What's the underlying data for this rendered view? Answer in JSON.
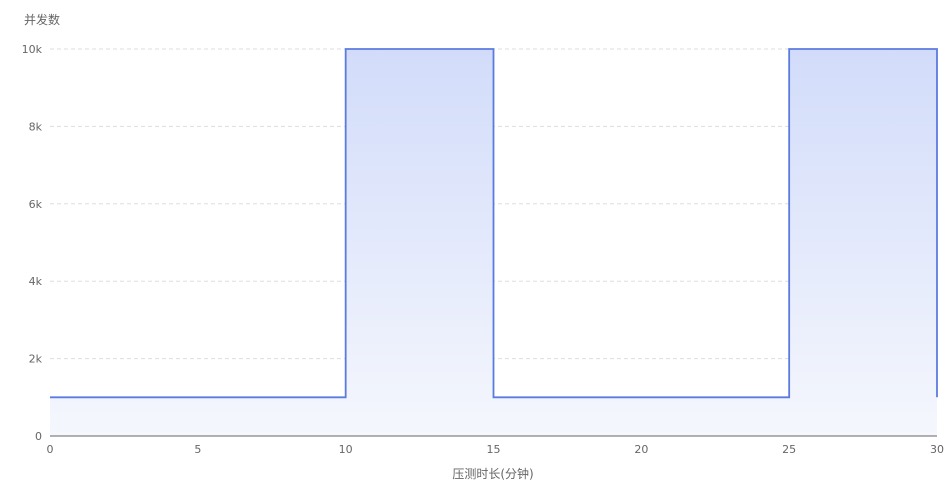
{
  "chart_data": {
    "type": "area",
    "ylabel": "并发数",
    "xlabel": "压测时长(分钟)",
    "xlim": [
      0,
      30
    ],
    "ylim": [
      0,
      10000
    ],
    "x_ticks": [
      {
        "value": 0,
        "label": "0"
      },
      {
        "value": 5,
        "label": "5"
      },
      {
        "value": 10,
        "label": "10"
      },
      {
        "value": 15,
        "label": "15"
      },
      {
        "value": 20,
        "label": "20"
      },
      {
        "value": 25,
        "label": "25"
      },
      {
        "value": 30,
        "label": "30"
      }
    ],
    "y_ticks": [
      {
        "value": 0,
        "label": "0"
      },
      {
        "value": 2000,
        "label": "2k"
      },
      {
        "value": 4000,
        "label": "4k"
      },
      {
        "value": 6000,
        "label": "6k"
      },
      {
        "value": 8000,
        "label": "8k"
      },
      {
        "value": 10000,
        "label": "10k"
      }
    ],
    "grid": true,
    "series": [
      {
        "color": "#5b7be0",
        "fill_top": "#d2dcfa",
        "fill_bottom": "#f5f7fd",
        "points": [
          {
            "x": 0,
            "y": 1000
          },
          {
            "x": 10,
            "y": 1000
          },
          {
            "x": 10,
            "y": 10000
          },
          {
            "x": 15,
            "y": 10000
          },
          {
            "x": 15,
            "y": 1000
          },
          {
            "x": 25,
            "y": 1000
          },
          {
            "x": 25,
            "y": 10000
          },
          {
            "x": 30,
            "y": 10000
          },
          {
            "x": 30,
            "y": 1000
          }
        ]
      }
    ]
  }
}
